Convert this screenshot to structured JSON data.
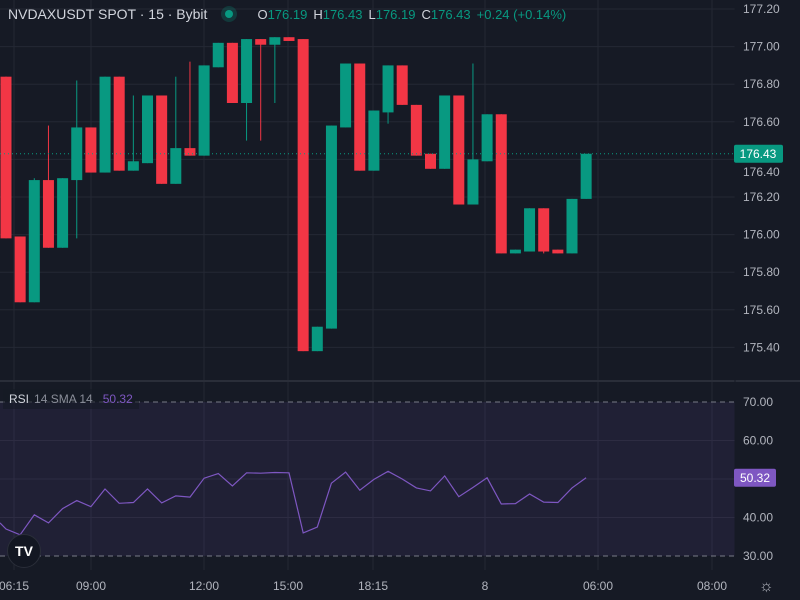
{
  "header": {
    "symbol": "NVDAXUSDT SPOT · 15 · Bybit",
    "market_status": "open",
    "ohlc": {
      "o_label": "O",
      "o": "176.19",
      "h_label": "H",
      "h": "176.43",
      "l_label": "L",
      "l": "176.19",
      "c_label": "C",
      "c": "176.43",
      "change": "+0.24 (+0.14%)"
    }
  },
  "colors": {
    "background": "#161a25",
    "up": "#089981",
    "down": "#f23645",
    "rsi_line": "#7e57c2",
    "grid": "#242834"
  },
  "price_axis": {
    "labels": [
      "177.20",
      "177.00",
      "176.80",
      "176.60",
      "176.40",
      "176.20",
      "176.00",
      "175.80",
      "175.60",
      "175.40"
    ],
    "current_price": "176.43"
  },
  "rsi": {
    "name": "RSI",
    "params": "14 SMA 14",
    "value": "50.32",
    "axis_labels": [
      "70.00",
      "60.00",
      "40.00",
      "30.00"
    ],
    "band_upper": 70,
    "band_lower": 30,
    "values": [
      37.0,
      35.5,
      40.7,
      38.6,
      42.3,
      44.4,
      42.8,
      47.4,
      43.7,
      43.9,
      47.4,
      43.8,
      45.6,
      45.3,
      50.2,
      51.4,
      48.2,
      51.6,
      51.5,
      51.7,
      51.6,
      36.0,
      37.5,
      48.9,
      51.8,
      47.1,
      49.9,
      52.0,
      50.0,
      47.7,
      46.9,
      50.8,
      45.4,
      47.8,
      50.3,
      43.5,
      43.6,
      46.1,
      44.0,
      43.9,
      47.7,
      50.32
    ]
  },
  "time_axis": {
    "labels": [
      "06:15",
      "09:00",
      "12:00",
      "15:00",
      "18:15",
      "8",
      "06:00",
      "08:00"
    ]
  },
  "chart_data": {
    "type": "candlestick",
    "ylim": [
      175.3,
      177.25
    ],
    "candles": [
      [
        176.84,
        176.84,
        175.98,
        175.98
      ],
      [
        175.99,
        175.99,
        175.64,
        175.64
      ],
      [
        175.64,
        176.3,
        175.64,
        176.29
      ],
      [
        176.29,
        176.58,
        175.93,
        175.93
      ],
      [
        175.93,
        176.3,
        175.93,
        176.3
      ],
      [
        176.29,
        176.82,
        175.98,
        176.57
      ],
      [
        176.57,
        176.57,
        176.33,
        176.33
      ],
      [
        176.33,
        176.84,
        176.33,
        176.84
      ],
      [
        176.84,
        176.84,
        176.34,
        176.34
      ],
      [
        176.34,
        176.74,
        176.34,
        176.39
      ],
      [
        176.38,
        176.74,
        176.38,
        176.74
      ],
      [
        176.74,
        176.74,
        176.27,
        176.27
      ],
      [
        176.27,
        176.84,
        176.27,
        176.46
      ],
      [
        176.46,
        176.92,
        176.42,
        176.42
      ],
      [
        176.42,
        176.9,
        176.42,
        176.9
      ],
      [
        176.89,
        177.02,
        176.89,
        177.02
      ],
      [
        177.02,
        177.02,
        176.7,
        176.7
      ],
      [
        176.7,
        177.04,
        176.5,
        177.04
      ],
      [
        177.04,
        177.04,
        176.5,
        177.01
      ],
      [
        177.01,
        177.05,
        176.7,
        177.05
      ],
      [
        177.05,
        177.05,
        177.03,
        177.03
      ],
      [
        177.04,
        177.04,
        175.38,
        175.38
      ],
      [
        175.38,
        175.51,
        175.38,
        175.51
      ],
      [
        175.5,
        176.58,
        175.5,
        176.58
      ],
      [
        176.57,
        176.91,
        176.57,
        176.91
      ],
      [
        176.91,
        176.91,
        176.34,
        176.34
      ],
      [
        176.34,
        176.66,
        176.34,
        176.66
      ],
      [
        176.65,
        176.9,
        176.59,
        176.9
      ],
      [
        176.9,
        176.9,
        176.69,
        176.69
      ],
      [
        176.69,
        176.69,
        176.42,
        176.42
      ],
      [
        176.43,
        176.43,
        176.35,
        176.35
      ],
      [
        176.35,
        176.74,
        176.35,
        176.74
      ],
      [
        176.74,
        176.74,
        176.16,
        176.16
      ],
      [
        176.16,
        176.91,
        176.16,
        176.4
      ],
      [
        176.39,
        176.64,
        176.39,
        176.64
      ],
      [
        176.64,
        176.64,
        175.9,
        175.9
      ],
      [
        175.9,
        175.92,
        175.9,
        175.92
      ],
      [
        175.91,
        176.14,
        175.91,
        176.14
      ],
      [
        176.14,
        176.14,
        175.9,
        175.91
      ],
      [
        175.92,
        175.92,
        175.9,
        175.9
      ],
      [
        175.9,
        176.19,
        175.9,
        176.19
      ],
      [
        176.19,
        176.43,
        176.19,
        176.43
      ]
    ],
    "candle_format": [
      "open",
      "high",
      "low",
      "close"
    ]
  }
}
